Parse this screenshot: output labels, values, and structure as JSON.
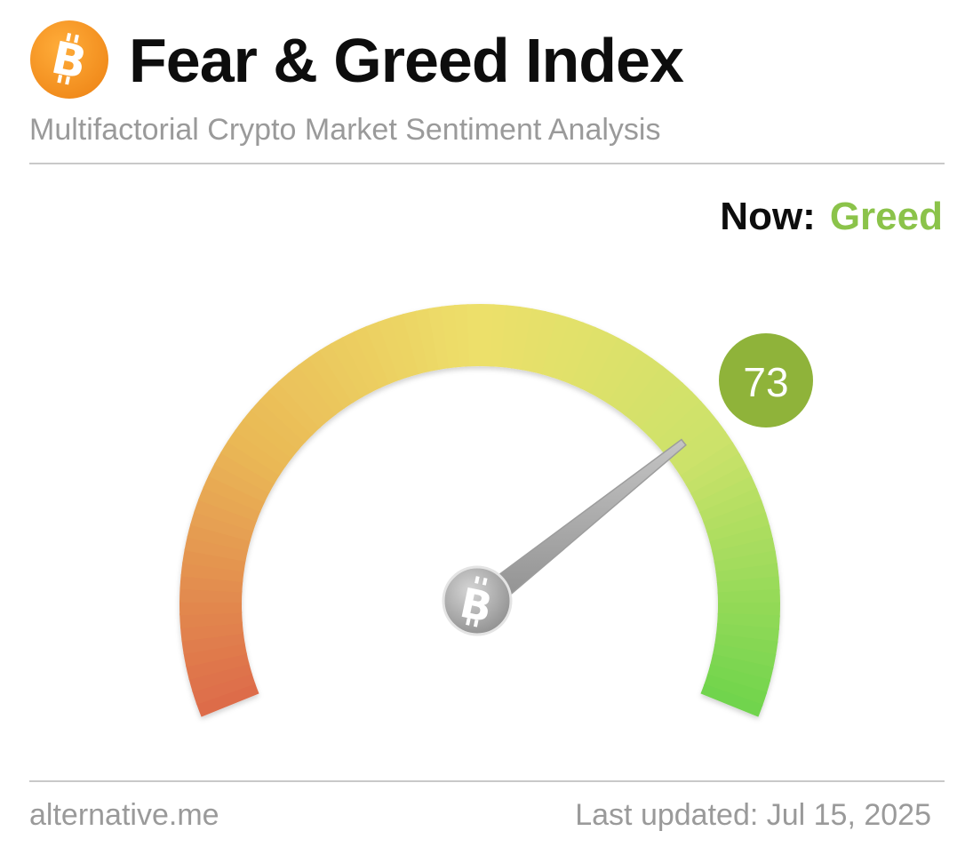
{
  "header": {
    "logo_icon": "bitcoin-icon",
    "title": "Fear & Greed Index",
    "subtitle": "Multifactorial Crypto Market Sentiment Analysis"
  },
  "status": {
    "now_label": "Now:",
    "now_value": "Greed",
    "now_color": "#8bc34a"
  },
  "gauge": {
    "value": 73,
    "value_label": "73",
    "min": 0,
    "max": 100,
    "badge_color": "#8fb33a",
    "needle_hub_icon": "bitcoin-icon",
    "gradient_colors": [
      "#dd6a4a",
      "#eab855",
      "#ede06a",
      "#cce26a",
      "#6fd44c"
    ]
  },
  "footer": {
    "source": "alternative.me",
    "last_updated": "Last updated: Jul 15, 2025"
  },
  "colors": {
    "brand_orange": "#f7931a",
    "text_dark": "#0d0d0d",
    "text_muted": "#9a9a9a"
  }
}
